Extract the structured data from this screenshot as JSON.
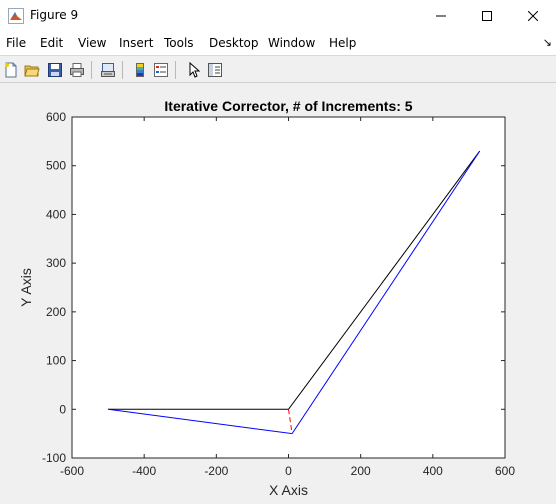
{
  "window": {
    "title": "Figure 9"
  },
  "menu": {
    "items": [
      "File",
      "Edit",
      "View",
      "Insert",
      "Tools",
      "Desktop",
      "Window",
      "Help"
    ]
  },
  "toolbar": {
    "tools": [
      "new-figure-icon",
      "open-file-icon",
      "save-icon",
      "print-icon",
      "link-plot-icon",
      "colorbar-icon",
      "legend-icon",
      "pointer-icon",
      "property-editor-icon"
    ]
  },
  "chart_data": {
    "type": "line",
    "title": "Iterative Corrector, # of Increments: 5",
    "xlabel": "X Axis",
    "ylabel": "Y Axis",
    "xlim": [
      -600,
      600
    ],
    "ylim": [
      -100,
      600
    ],
    "xticks": [
      -600,
      -400,
      -200,
      0,
      200,
      400,
      600
    ],
    "yticks": [
      -100,
      0,
      100,
      200,
      300,
      400,
      500,
      600
    ],
    "grid": false,
    "series": [
      {
        "color": "#000000",
        "x": [
          -500,
          0,
          530
        ],
        "y": [
          0,
          0,
          530
        ]
      },
      {
        "color": "#0000ff",
        "x": [
          -500,
          10,
          530
        ],
        "y": [
          0,
          -50,
          530
        ]
      },
      {
        "color": "#ff0000",
        "dashed": true,
        "x": [
          0,
          10
        ],
        "y": [
          0,
          -50
        ]
      }
    ]
  }
}
